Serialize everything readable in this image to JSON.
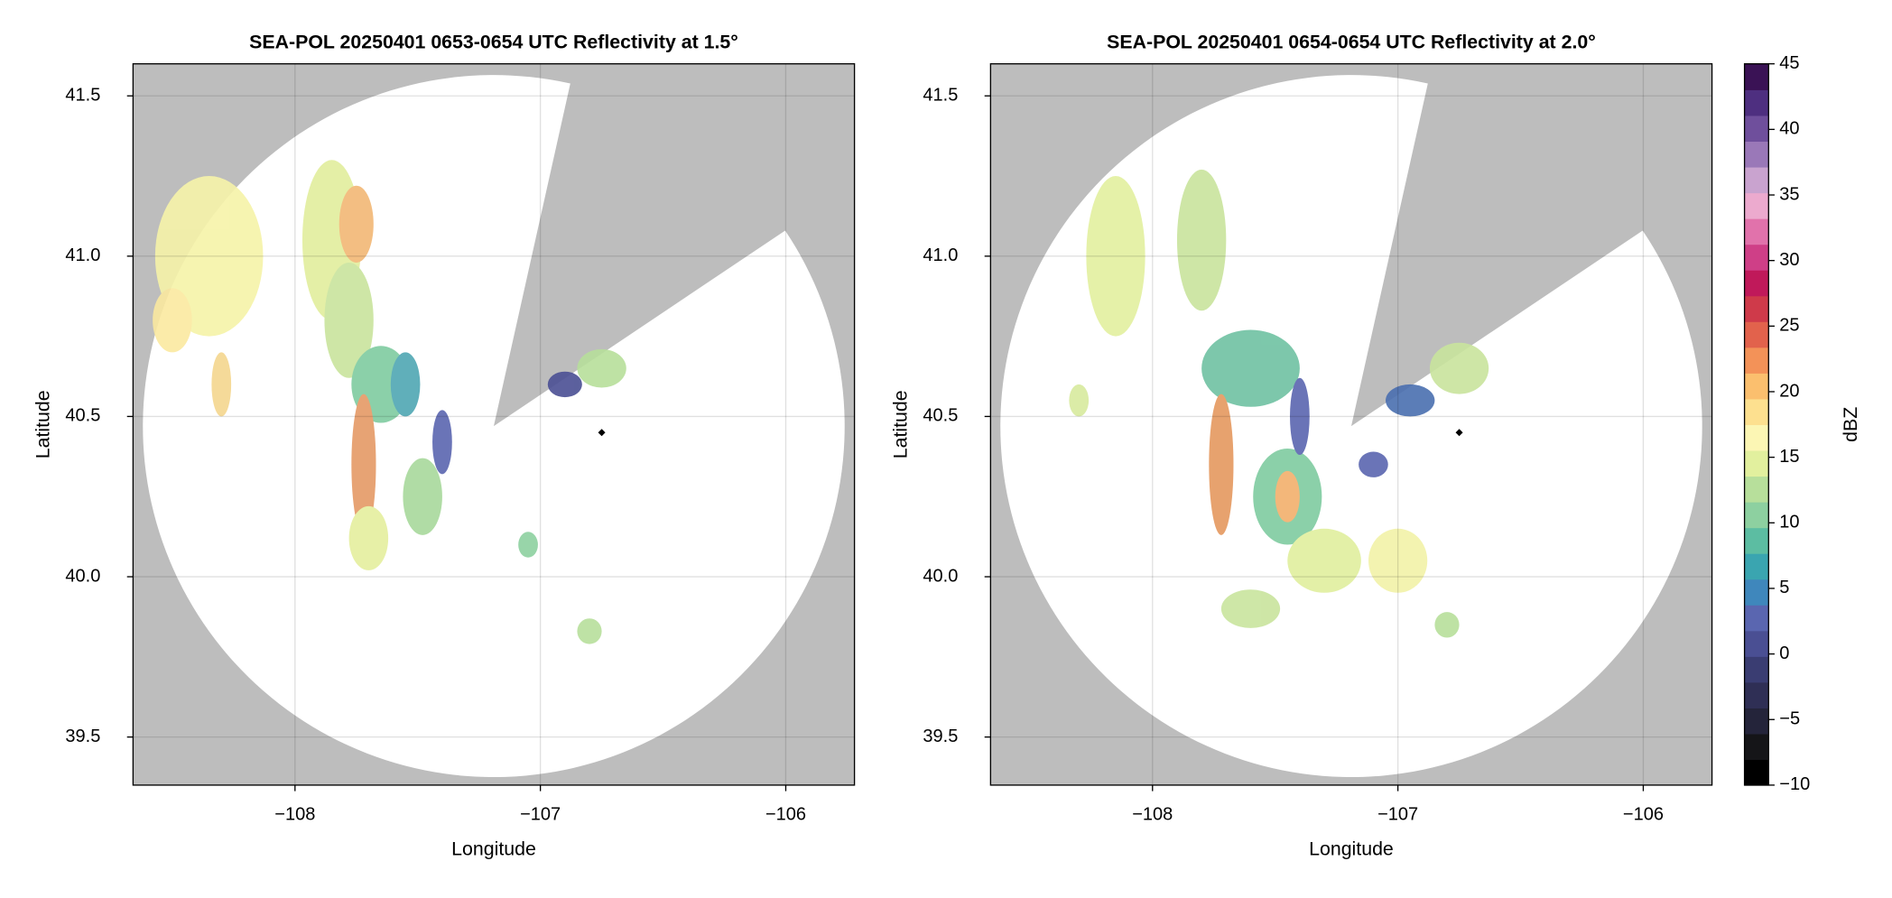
{
  "chart_data": [
    {
      "type": "radar",
      "title": "SEA-POL 20250401 0653-0654 UTC Reflectivity at 1.5°",
      "xlabel": "Longitude",
      "ylabel": "Latitude",
      "xlim": [
        -108.66,
        -105.72
      ],
      "ylim": [
        39.35,
        41.6
      ],
      "xticks": [
        {
          "value": -108,
          "label": "−108"
        },
        {
          "value": -107,
          "label": "−107"
        },
        {
          "value": -106,
          "label": "−106"
        }
      ],
      "yticks": [
        39.5,
        {
          "value": 40,
          "label": "40.0"
        },
        40.5,
        {
          "value": 41,
          "label": "41.0"
        },
        41.5
      ],
      "grid": true
    },
    {
      "type": "radar",
      "title": "SEA-POL 20250401 0654-0654 UTC Reflectivity at 2.0°",
      "xlabel": "Longitude",
      "ylabel": "Latitude",
      "xlim": [
        -108.66,
        -105.72
      ],
      "ylim": [
        39.35,
        41.6
      ],
      "xticks": [
        {
          "value": -108,
          "label": "−108"
        },
        {
          "value": -107,
          "label": "−107"
        },
        {
          "value": -106,
          "label": "−106"
        }
      ],
      "yticks": [
        39.5,
        {
          "value": 40,
          "label": "40.0"
        },
        40.5,
        {
          "value": 41,
          "label": "41.0"
        },
        41.5
      ],
      "grid": true
    },
    {
      "type": "colorbar",
      "label": "dBZ",
      "lim": [
        -10,
        45
      ],
      "ticks": [
        {
          "value": -10,
          "label": "−10"
        },
        {
          "value": -5,
          "label": "−5"
        },
        0,
        5,
        10,
        15,
        20,
        25,
        30,
        35,
        40,
        45
      ],
      "colors": [
        "#000000",
        "#151518",
        "#24243a",
        "#2f2f55",
        "#3a3d72",
        "#4a4f93",
        "#5a66b0",
        "#3f87bc",
        "#3aa5b0",
        "#5cbda2",
        "#8dd0a0",
        "#b7df9b",
        "#e2f09e",
        "#fcf6b4",
        "#fde08f",
        "#fbbf6e",
        "#f39258",
        "#e2624c",
        "#cf3a4a",
        "#c0195a",
        "#cf3f87",
        "#e172ab",
        "#ecaace",
        "#c9a3cf",
        "#9a78b8",
        "#6f4f9c",
        "#4e2f80",
        "#3a1255"
      ]
    }
  ]
}
